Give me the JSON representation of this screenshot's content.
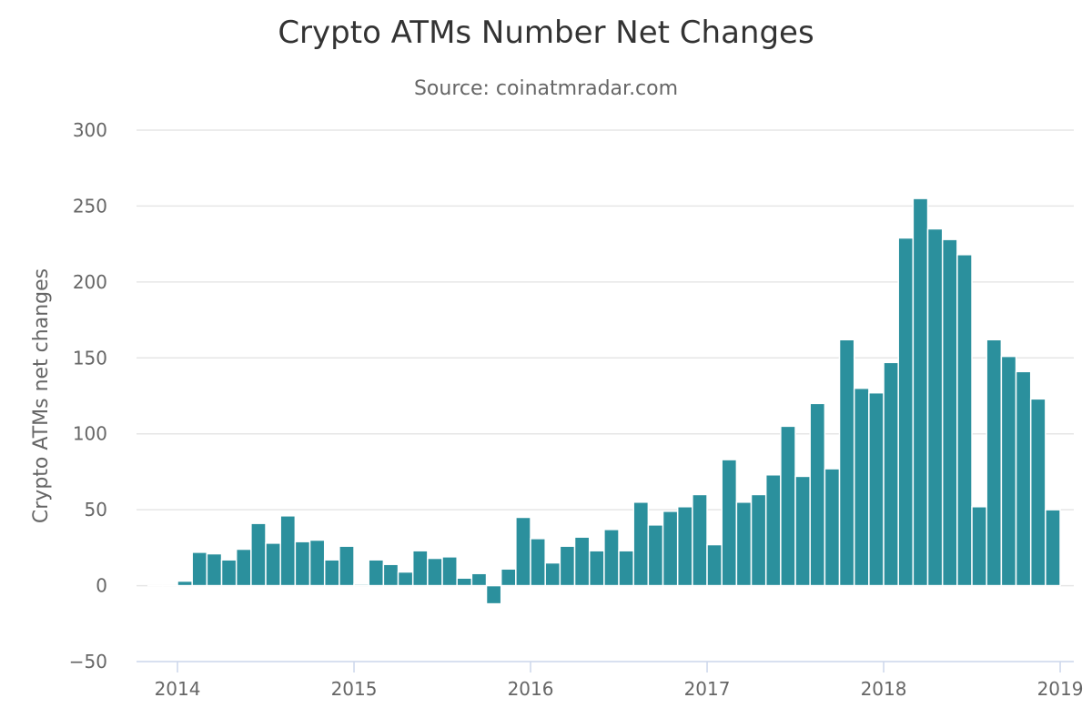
{
  "chart_data": {
    "type": "bar",
    "title": "Crypto ATMs Number Net Changes",
    "subtitle": "Source: coinatmradar.com",
    "ylabel": "Crypto ATMs net changes",
    "xlabel": "",
    "ylim": [
      -50,
      300
    ],
    "yticks": [
      -50,
      0,
      50,
      100,
      150,
      200,
      250,
      300
    ],
    "xlim": [
      "2013-11",
      "2019-01"
    ],
    "xticks": [
      "2014",
      "2015",
      "2016",
      "2017",
      "2018",
      "2019"
    ],
    "grid": true,
    "legend": "none",
    "color": "#2b909d",
    "series": [
      {
        "x": [
          "2013-11",
          "2013-12",
          "2014-01",
          "2014-02",
          "2014-03",
          "2014-04",
          "2014-05",
          "2014-06",
          "2014-07",
          "2014-08",
          "2014-09",
          "2014-10",
          "2014-11",
          "2014-12",
          "2015-01",
          "2015-02",
          "2015-03",
          "2015-04",
          "2015-05",
          "2015-06",
          "2015-07",
          "2015-08",
          "2015-09",
          "2015-10",
          "2015-11",
          "2015-12",
          "2016-01",
          "2016-02",
          "2016-03",
          "2016-04",
          "2016-05",
          "2016-06",
          "2016-07",
          "2016-08",
          "2016-09",
          "2016-10",
          "2016-11",
          "2016-12",
          "2017-01",
          "2017-02",
          "2017-03",
          "2017-04",
          "2017-05",
          "2017-06",
          "2017-07",
          "2017-08",
          "2017-09",
          "2017-10",
          "2017-11",
          "2017-12",
          "2018-01",
          "2018-02",
          "2018-03",
          "2018-04",
          "2018-05",
          "2018-06",
          "2018-07",
          "2018-08",
          "2018-09",
          "2018-10",
          "2018-11",
          "2018-12"
        ],
        "values": [
          0,
          0,
          3,
          22,
          21,
          17,
          24,
          41,
          28,
          46,
          29,
          30,
          17,
          26,
          1,
          17,
          14,
          9,
          23,
          18,
          19,
          5,
          8,
          -12,
          11,
          45,
          31,
          15,
          26,
          32,
          23,
          37,
          23,
          55,
          40,
          49,
          52,
          60,
          27,
          83,
          55,
          60,
          73,
          105,
          72,
          120,
          77,
          162,
          130,
          127,
          147,
          229,
          255,
          235,
          228,
          218,
          52,
          162,
          151,
          141,
          123,
          50
        ]
      }
    ]
  }
}
